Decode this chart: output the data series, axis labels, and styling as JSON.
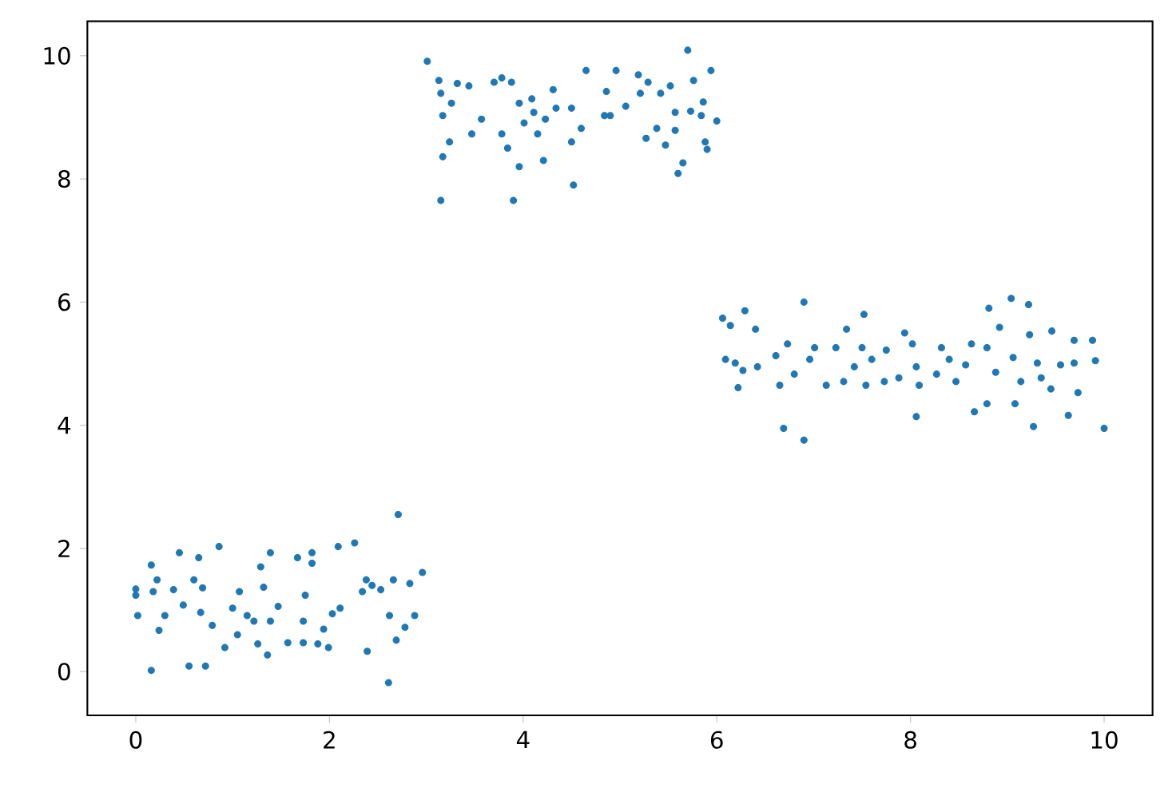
{
  "chart_data": {
    "type": "scatter",
    "color": "#1f77b4",
    "x": [
      0.0,
      0.0,
      0.02,
      0.16,
      0.16,
      0.18,
      0.22,
      0.24,
      0.3,
      0.39,
      0.45,
      0.49,
      0.55,
      0.6,
      0.65,
      0.67,
      0.69,
      0.72,
      0.79,
      0.86,
      0.92,
      1.0,
      1.05,
      1.07,
      1.15,
      1.22,
      1.26,
      1.29,
      1.32,
      1.36,
      1.39,
      1.39,
      1.47,
      1.57,
      1.67,
      1.73,
      1.73,
      1.75,
      1.82,
      1.82,
      1.88,
      1.94,
      1.99,
      2.03,
      2.11,
      2.09,
      2.26,
      2.34,
      2.39,
      2.38,
      2.44,
      2.53,
      2.61,
      2.62,
      2.66,
      2.69,
      2.71,
      2.78,
      2.83,
      2.88,
      2.96,
      3.01,
      3.13,
      3.15,
      3.15,
      3.17,
      3.17,
      3.26,
      3.24,
      3.32,
      3.44,
      3.47,
      3.57,
      3.7,
      3.78,
      3.88,
      3.78,
      3.84,
      3.9,
      3.96,
      3.96,
      4.01,
      4.09,
      4.11,
      4.15,
      4.21,
      4.23,
      4.31,
      4.34,
      4.5,
      4.52,
      4.5,
      4.6,
      4.65,
      4.84,
      4.9,
      4.86,
      4.96,
      5.06,
      5.21,
      5.19,
      5.27,
      5.29,
      5.38,
      5.42,
      5.47,
      5.52,
      5.57,
      5.6,
      5.57,
      5.65,
      5.7,
      5.73,
      5.76,
      5.84,
      5.88,
      5.9,
      5.86,
      5.94,
      6.0,
      6.06,
      6.09,
      6.14,
      6.19,
      6.22,
      6.29,
      6.27,
      6.4,
      6.42,
      6.61,
      6.65,
      6.69,
      6.73,
      6.8,
      6.9,
      6.9,
      6.96,
      7.01,
      7.13,
      7.23,
      7.31,
      7.34,
      7.42,
      7.5,
      7.52,
      7.54,
      7.6,
      7.73,
      7.75,
      7.88,
      7.94,
      8.02,
      8.06,
      8.09,
      8.06,
      8.27,
      8.32,
      8.4,
      8.47,
      8.57,
      8.63,
      8.66,
      8.79,
      8.81,
      8.79,
      8.88,
      8.92,
      9.04,
      9.06,
      9.08,
      9.14,
      9.22,
      9.23,
      9.27,
      9.31,
      9.35,
      9.45,
      9.46,
      9.55,
      9.63,
      9.69,
      9.73,
      9.69,
      9.88,
      9.91,
      10.0
    ],
    "values": [
      1.34,
      1.24,
      0.91,
      1.73,
      0.02,
      1.3,
      1.49,
      0.67,
      0.91,
      1.33,
      1.93,
      1.08,
      0.09,
      1.49,
      1.85,
      0.96,
      1.36,
      0.09,
      0.75,
      2.03,
      0.39,
      1.03,
      0.6,
      1.3,
      0.91,
      0.82,
      0.45,
      1.7,
      1.37,
      0.27,
      1.93,
      0.82,
      1.06,
      0.47,
      1.85,
      0.47,
      0.82,
      1.24,
      1.93,
      1.76,
      0.45,
      0.69,
      0.39,
      0.94,
      1.03,
      2.03,
      2.09,
      1.3,
      0.33,
      1.49,
      1.4,
      1.33,
      -0.18,
      0.91,
      1.49,
      0.51,
      2.55,
      0.72,
      1.43,
      0.91,
      1.61,
      9.91,
      9.6,
      9.39,
      7.65,
      9.03,
      8.36,
      9.23,
      8.6,
      9.55,
      9.51,
      8.73,
      8.97,
      9.57,
      9.64,
      9.57,
      8.73,
      8.5,
      7.65,
      9.23,
      8.2,
      8.91,
      9.3,
      9.08,
      8.73,
      8.3,
      8.97,
      9.45,
      9.15,
      9.15,
      7.9,
      8.6,
      8.82,
      9.76,
      9.03,
      9.03,
      9.42,
      9.76,
      9.18,
      9.39,
      9.69,
      8.66,
      9.57,
      8.82,
      9.39,
      8.55,
      9.51,
      8.79,
      8.09,
      9.08,
      8.26,
      10.09,
      9.1,
      9.6,
      9.03,
      8.6,
      8.48,
      9.25,
      9.76,
      8.94,
      5.74,
      5.07,
      5.62,
      5.01,
      4.61,
      5.86,
      4.89,
      5.56,
      4.95,
      5.13,
      4.65,
      3.95,
      5.32,
      4.83,
      6.0,
      3.76,
      5.07,
      5.26,
      4.65,
      5.26,
      4.71,
      5.56,
      4.95,
      5.26,
      5.8,
      4.65,
      5.07,
      4.71,
      5.22,
      4.77,
      5.5,
      5.32,
      4.14,
      4.65,
      4.95,
      4.83,
      5.26,
      5.07,
      4.71,
      4.98,
      5.32,
      4.22,
      5.26,
      5.9,
      4.35,
      4.86,
      5.59,
      6.06,
      5.1,
      4.35,
      4.71,
      5.96,
      5.47,
      3.98,
      5.01,
      4.77,
      4.59,
      5.53,
      4.98,
      4.16,
      5.01,
      4.53,
      5.38,
      5.38,
      5.05,
      3.95
    ],
    "xlim": [
      -0.5,
      10.5
    ],
    "ylim": [
      -0.71,
      10.56
    ],
    "xticks": [
      0,
      2,
      4,
      6,
      8,
      10
    ],
    "yticks": [
      0,
      2,
      4,
      6,
      8,
      10
    ]
  }
}
